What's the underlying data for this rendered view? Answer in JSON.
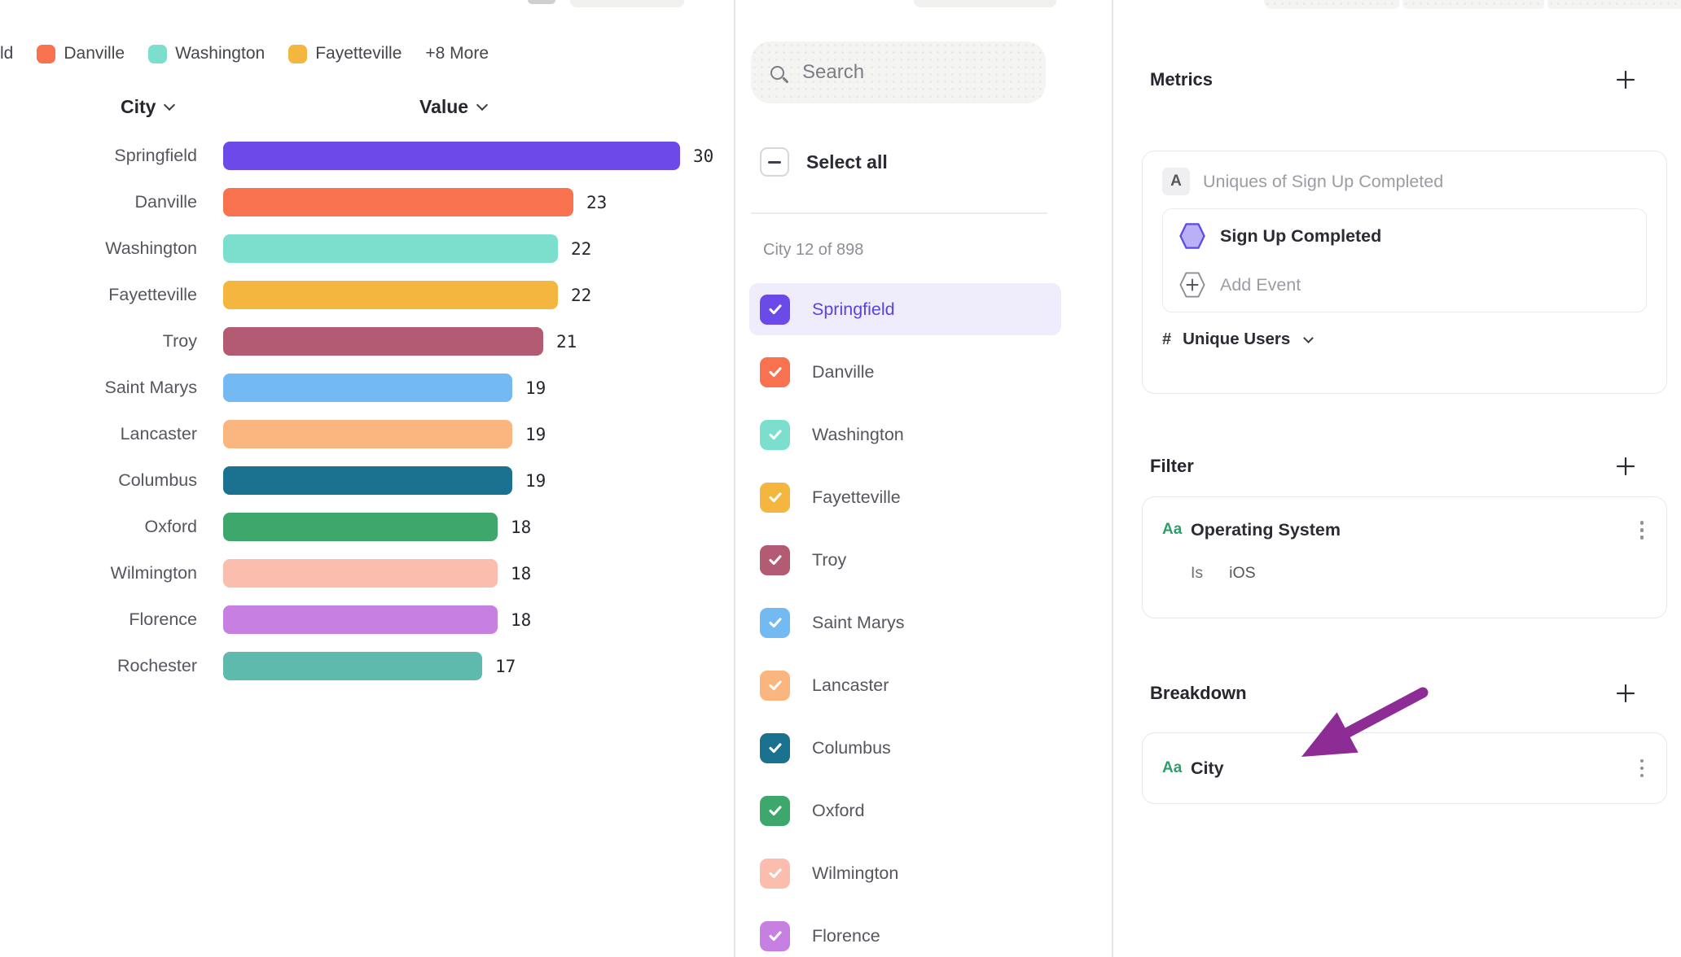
{
  "legend": {
    "partial_label": "ld",
    "items": [
      {
        "label": "Danville",
        "color": "#F8724F"
      },
      {
        "label": "Washington",
        "color": "#7CDFCE"
      },
      {
        "label": "Fayetteville",
        "color": "#F4B63E"
      }
    ],
    "more_label": "+8 More"
  },
  "chart": {
    "columns": {
      "city": "City",
      "value": "Value"
    }
  },
  "chart_data": {
    "type": "bar",
    "orientation": "horizontal",
    "title": "",
    "xlabel": "Value",
    "ylabel": "City",
    "xlim": [
      0,
      30
    ],
    "grid": false,
    "categories": [
      "Springfield",
      "Danville",
      "Washington",
      "Fayetteville",
      "Troy",
      "Saint Marys",
      "Lancaster",
      "Columbus",
      "Oxford",
      "Wilmington",
      "Florence",
      "Rochester"
    ],
    "values": [
      30,
      23,
      22,
      22,
      21,
      19,
      19,
      19,
      18,
      18,
      18,
      17
    ],
    "colors": [
      "#6B4AE9",
      "#F8724F",
      "#7CDFCE",
      "#F4B63E",
      "#B25B72",
      "#73BAF2",
      "#FBB57E",
      "#1B7190",
      "#3EA76B",
      "#FBBDAE",
      "#C87FE2",
      "#5FBAAE"
    ]
  },
  "filter_panel": {
    "search_placeholder": "Search",
    "select_all_label": "Select all",
    "count_label": "City 12 of 898",
    "items": [
      {
        "label": "Springfield",
        "color": "#6B4AE9",
        "highlighted": true
      },
      {
        "label": "Danville",
        "color": "#F8724F"
      },
      {
        "label": "Washington",
        "color": "#7CDFCE"
      },
      {
        "label": "Fayetteville",
        "color": "#F4B63E"
      },
      {
        "label": "Troy",
        "color": "#B25B72"
      },
      {
        "label": "Saint Marys",
        "color": "#73BAF2"
      },
      {
        "label": "Lancaster",
        "color": "#FBB57E"
      },
      {
        "label": "Columbus",
        "color": "#1B7190"
      },
      {
        "label": "Oxford",
        "color": "#3EA76B"
      },
      {
        "label": "Wilmington",
        "color": "#FBBDAE"
      },
      {
        "label": "Florence",
        "color": "#C87FE2"
      }
    ]
  },
  "metrics": {
    "title": "Metrics",
    "row_badge": "A",
    "row_label": "Uniques of Sign Up Completed",
    "event_label": "Sign Up Completed",
    "add_event_label": "Add Event",
    "measure_symbol": "#",
    "measure_label": "Unique Users"
  },
  "filter_section": {
    "title": "Filter",
    "badge": "Aa",
    "property": "Operating System",
    "operator": "Is",
    "value": "iOS"
  },
  "breakdown_section": {
    "title": "Breakdown",
    "badge": "Aa",
    "property": "City"
  },
  "colors": {
    "accent_purple": "#6B4AE9",
    "highlight_row": "#EFECFB",
    "annotation_arrow": "#8E2C96",
    "aa_badge_green": "#2E9E6B"
  }
}
